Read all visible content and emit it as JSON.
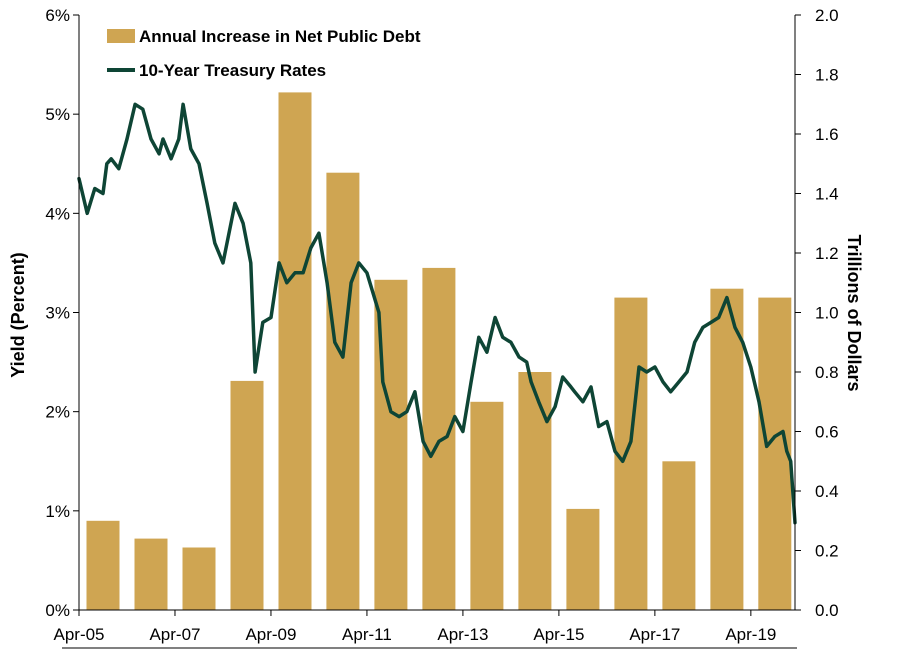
{
  "chart_data": {
    "type": "bar",
    "title": "",
    "xlabel": "",
    "y_left_label": "Yield (Percent)",
    "y_right_label": "Trillions of Dollars",
    "y_left_ticks": [
      "0%",
      "1%",
      "2%",
      "3%",
      "4%",
      "5%",
      "6%"
    ],
    "y_left_lim": [
      0,
      6
    ],
    "y_right_ticks": [
      "0.0",
      "0.2",
      "0.4",
      "0.6",
      "0.8",
      "1.0",
      "1.2",
      "1.4",
      "1.6",
      "1.8",
      "2.0"
    ],
    "y_right_lim": [
      0,
      2
    ],
    "x_ticks": [
      "Apr-05",
      "Apr-07",
      "Apr-09",
      "Apr-11",
      "Apr-13",
      "Apr-15",
      "Apr-17",
      "Apr-19"
    ],
    "x_range": [
      2005.25,
      2020.17
    ],
    "grid": false,
    "legend_position": "top-left",
    "colors": {
      "bars": "#CFA552",
      "line": "#0E4535"
    },
    "series": [
      {
        "name": "Annual Increase in Net Public Debt",
        "type": "bar",
        "axis": "right",
        "x": [
          2005.75,
          2006.75,
          2007.75,
          2008.75,
          2009.75,
          2010.75,
          2011.75,
          2012.75,
          2013.75,
          2014.75,
          2015.75,
          2016.75,
          2017.75,
          2018.75,
          2019.75
        ],
        "values": [
          0.3,
          0.24,
          0.21,
          0.77,
          1.74,
          1.47,
          1.11,
          1.15,
          0.7,
          0.8,
          0.34,
          1.05,
          0.5,
          1.08,
          1.05
        ]
      },
      {
        "name": "10-Year Treasury Rates",
        "type": "line",
        "axis": "left",
        "points": [
          [
            2005.25,
            4.35
          ],
          [
            2005.42,
            4.0
          ],
          [
            2005.58,
            4.25
          ],
          [
            2005.75,
            4.2
          ],
          [
            2005.83,
            4.5
          ],
          [
            2005.92,
            4.55
          ],
          [
            2006.08,
            4.45
          ],
          [
            2006.25,
            4.75
          ],
          [
            2006.42,
            5.1
          ],
          [
            2006.58,
            5.05
          ],
          [
            2006.75,
            4.75
          ],
          [
            2006.92,
            4.6
          ],
          [
            2007.0,
            4.75
          ],
          [
            2007.17,
            4.55
          ],
          [
            2007.33,
            4.75
          ],
          [
            2007.42,
            5.1
          ],
          [
            2007.58,
            4.65
          ],
          [
            2007.75,
            4.5
          ],
          [
            2007.92,
            4.1
          ],
          [
            2008.08,
            3.7
          ],
          [
            2008.25,
            3.5
          ],
          [
            2008.5,
            4.1
          ],
          [
            2008.67,
            3.9
          ],
          [
            2008.83,
            3.5
          ],
          [
            2008.92,
            2.4
          ],
          [
            2009.08,
            2.9
          ],
          [
            2009.25,
            2.95
          ],
          [
            2009.42,
            3.5
          ],
          [
            2009.58,
            3.3
          ],
          [
            2009.75,
            3.4
          ],
          [
            2009.92,
            3.4
          ],
          [
            2010.08,
            3.65
          ],
          [
            2010.25,
            3.8
          ],
          [
            2010.42,
            3.3
          ],
          [
            2010.58,
            2.7
          ],
          [
            2010.75,
            2.55
          ],
          [
            2010.92,
            3.3
          ],
          [
            2011.08,
            3.5
          ],
          [
            2011.25,
            3.4
          ],
          [
            2011.5,
            3.0
          ],
          [
            2011.58,
            2.3
          ],
          [
            2011.75,
            2.0
          ],
          [
            2011.92,
            1.95
          ],
          [
            2012.08,
            2.0
          ],
          [
            2012.25,
            2.2
          ],
          [
            2012.42,
            1.7
          ],
          [
            2012.58,
            1.55
          ],
          [
            2012.75,
            1.7
          ],
          [
            2012.92,
            1.75
          ],
          [
            2013.08,
            1.95
          ],
          [
            2013.25,
            1.8
          ],
          [
            2013.42,
            2.3
          ],
          [
            2013.58,
            2.75
          ],
          [
            2013.75,
            2.6
          ],
          [
            2013.92,
            2.95
          ],
          [
            2014.08,
            2.75
          ],
          [
            2014.25,
            2.7
          ],
          [
            2014.42,
            2.55
          ],
          [
            2014.58,
            2.5
          ],
          [
            2014.67,
            2.3
          ],
          [
            2014.83,
            2.1
          ],
          [
            2015.0,
            1.9
          ],
          [
            2015.17,
            2.05
          ],
          [
            2015.33,
            2.35
          ],
          [
            2015.5,
            2.25
          ],
          [
            2015.58,
            2.2
          ],
          [
            2015.75,
            2.1
          ],
          [
            2015.92,
            2.25
          ],
          [
            2016.08,
            1.85
          ],
          [
            2016.25,
            1.9
          ],
          [
            2016.42,
            1.6
          ],
          [
            2016.58,
            1.5
          ],
          [
            2016.75,
            1.7
          ],
          [
            2016.92,
            2.45
          ],
          [
            2017.08,
            2.4
          ],
          [
            2017.25,
            2.45
          ],
          [
            2017.42,
            2.3
          ],
          [
            2017.58,
            2.2
          ],
          [
            2017.75,
            2.3
          ],
          [
            2017.92,
            2.4
          ],
          [
            2018.08,
            2.7
          ],
          [
            2018.25,
            2.85
          ],
          [
            2018.42,
            2.9
          ],
          [
            2018.58,
            2.95
          ],
          [
            2018.75,
            3.15
          ],
          [
            2018.92,
            2.85
          ],
          [
            2019.08,
            2.7
          ],
          [
            2019.25,
            2.45
          ],
          [
            2019.42,
            2.1
          ],
          [
            2019.58,
            1.65
          ],
          [
            2019.75,
            1.75
          ],
          [
            2019.92,
            1.8
          ],
          [
            2020.0,
            1.6
          ],
          [
            2020.08,
            1.5
          ],
          [
            2020.17,
            0.88
          ]
        ]
      }
    ]
  }
}
